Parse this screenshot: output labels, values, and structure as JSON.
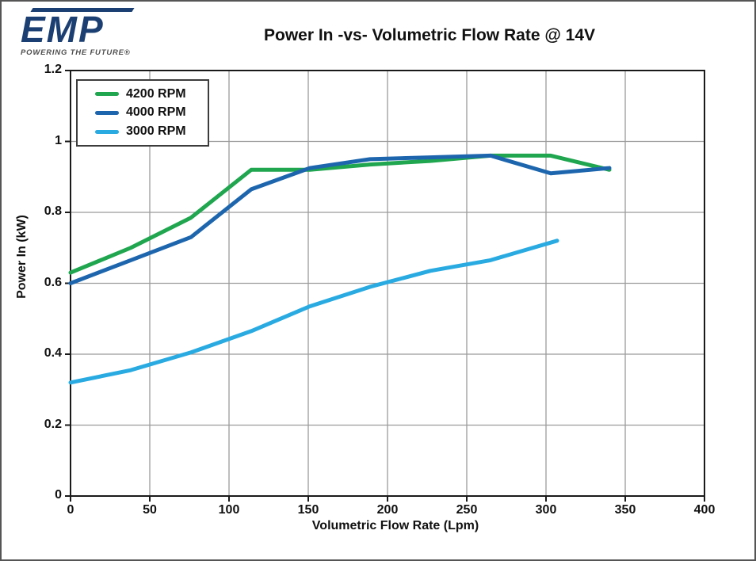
{
  "logo": {
    "text": "EMP",
    "tagline": "POWERING THE FUTURE®"
  },
  "chart_data": {
    "type": "line",
    "title": "Power In -vs- Volumetric Flow Rate @ 14V",
    "xlabel": "Volumetric Flow Rate (Lpm)",
    "ylabel": "Power In (kW)",
    "xlim": [
      0,
      400
    ],
    "ylim": [
      0,
      1.2
    ],
    "x_ticks": [
      0,
      50,
      100,
      150,
      200,
      250,
      300,
      350,
      400
    ],
    "y_ticks": [
      0,
      0.2,
      0.4,
      0.6,
      0.8,
      1,
      1.2
    ],
    "grid": true,
    "legend_position": "top-left",
    "series": [
      {
        "name": "4200 RPM",
        "color": "#1FA64F",
        "x": [
          0,
          38,
          76,
          114,
          151,
          189,
          227,
          265,
          303,
          340
        ],
        "y": [
          0.63,
          0.7,
          0.785,
          0.92,
          0.92,
          0.935,
          0.945,
          0.96,
          0.96,
          0.92
        ]
      },
      {
        "name": "4000 RPM",
        "color": "#1D66AE",
        "x": [
          0,
          38,
          76,
          114,
          151,
          189,
          227,
          265,
          303,
          340
        ],
        "y": [
          0.6,
          0.665,
          0.73,
          0.865,
          0.925,
          0.95,
          0.955,
          0.96,
          0.91,
          0.925
        ]
      },
      {
        "name": "3000 RPM",
        "color": "#29ABE2",
        "x": [
          0,
          38,
          76,
          114,
          151,
          189,
          227,
          265,
          284,
          307
        ],
        "y": [
          0.32,
          0.355,
          0.405,
          0.465,
          0.535,
          0.59,
          0.635,
          0.665,
          0.69,
          0.72
        ]
      }
    ]
  },
  "colors": {
    "frame": "#1a1a1a",
    "grid": "#9b9b9b",
    "logo_navy": "#1b3f72",
    "tagline_gray": "#4d4d4d",
    "canvas_border": "#555555",
    "text": "#111111"
  }
}
